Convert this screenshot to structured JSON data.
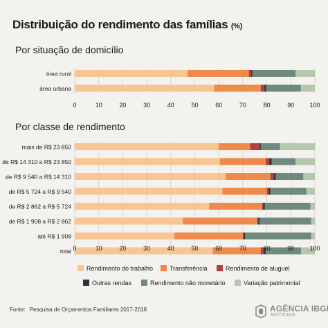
{
  "title": "Distribuição do rendimento das famílias",
  "title_unit": "(%)",
  "colors": {
    "Rendimento do trabalho": "#f6c693",
    "Transferência": "#ee8a4a",
    "Rendimento de aluguel": "#b0443c",
    "Outras rendas": "#263540",
    "Rendimento não monetário": "#6e8a7d",
    "Variação patrimonial": "#b7c7ad"
  },
  "legend": {
    "row1": [
      "Rendimento do trabalho",
      "Transferência",
      "Rendimento de aluguel"
    ],
    "row2": [
      "Outras rendas",
      "Rendimento não monetário",
      "Variação patrimonial"
    ]
  },
  "source_label": "Fonte:",
  "source_text": "Pesquisa de Orçamentos Familiares 2017-2018",
  "logo": {
    "word": "AGÊNCIA IBGE",
    "sub": "NOTÍCIAS",
    "icon": "ibge-logo-icon"
  },
  "chart_data": [
    {
      "type": "bar",
      "orientation": "horizontal",
      "stacked": true,
      "subtitle": "Por situação de domicílio",
      "categories": [
        "área rural",
        "área urbana"
      ],
      "series": [
        {
          "name": "Rendimento do trabalho",
          "values": [
            47.0,
            58.0
          ]
        },
        {
          "name": "Transferência",
          "values": [
            25.5,
            19.5
          ]
        },
        {
          "name": "Rendimento de aluguel",
          "values": [
            1.0,
            1.5
          ]
        },
        {
          "name": "Outras rendas",
          "values": [
            0.5,
            0.7
          ]
        },
        {
          "name": "Rendimento não monetário",
          "values": [
            18.0,
            14.5
          ]
        },
        {
          "name": "Variação patrimonial",
          "values": [
            8.0,
            5.8
          ]
        }
      ],
      "xlim": [
        0,
        100
      ],
      "xticks": [
        "0",
        "10",
        "20",
        "30",
        "40",
        "50",
        "60",
        "70",
        "80",
        "90",
        "100"
      ],
      "grid": true
    },
    {
      "type": "bar",
      "orientation": "horizontal",
      "stacked": true,
      "subtitle": "Por classe de rendimento",
      "categories": [
        "mais de R$ 23 850",
        "de R$ 14 310 a R$ 23 850",
        "de R$ 9 540 a R$ 14 310",
        "de R$ 5 724 a R$ 9 540",
        "de R$ 2 862 a R$ 5 724",
        "de R$ 1 908 a R$ 2 862",
        "até R$ 1 908",
        "total"
      ],
      "series": [
        {
          "name": "Rendimento do trabalho",
          "values": [
            60.0,
            60.5,
            63.0,
            61.5,
            56.0,
            45.0,
            41.5,
            57.5
          ]
        },
        {
          "name": "Transferência",
          "values": [
            13.0,
            19.0,
            18.5,
            18.5,
            22.0,
            31.0,
            28.5,
            20.0
          ]
        },
        {
          "name": "Rendimento de aluguel",
          "values": [
            4.0,
            1.5,
            1.5,
            0.8,
            0.5,
            0.4,
            0.4,
            1.2
          ]
        },
        {
          "name": "Outras rendas",
          "values": [
            0.5,
            1.0,
            0.7,
            0.7,
            0.7,
            0.6,
            0.6,
            0.8
          ]
        },
        {
          "name": "Rendimento não monetário",
          "values": [
            8.0,
            10.0,
            11.5,
            15.0,
            19.0,
            21.5,
            27.5,
            14.8
          ]
        },
        {
          "name": "Variação patrimonial",
          "values": [
            14.5,
            8.0,
            4.8,
            3.5,
            1.8,
            1.5,
            1.5,
            5.7
          ]
        }
      ],
      "xlim": [
        0,
        100
      ],
      "xticks": [
        "0",
        "10",
        "20",
        "30",
        "40",
        "50",
        "60",
        "70",
        "80",
        "90",
        "100"
      ],
      "grid": true
    }
  ]
}
